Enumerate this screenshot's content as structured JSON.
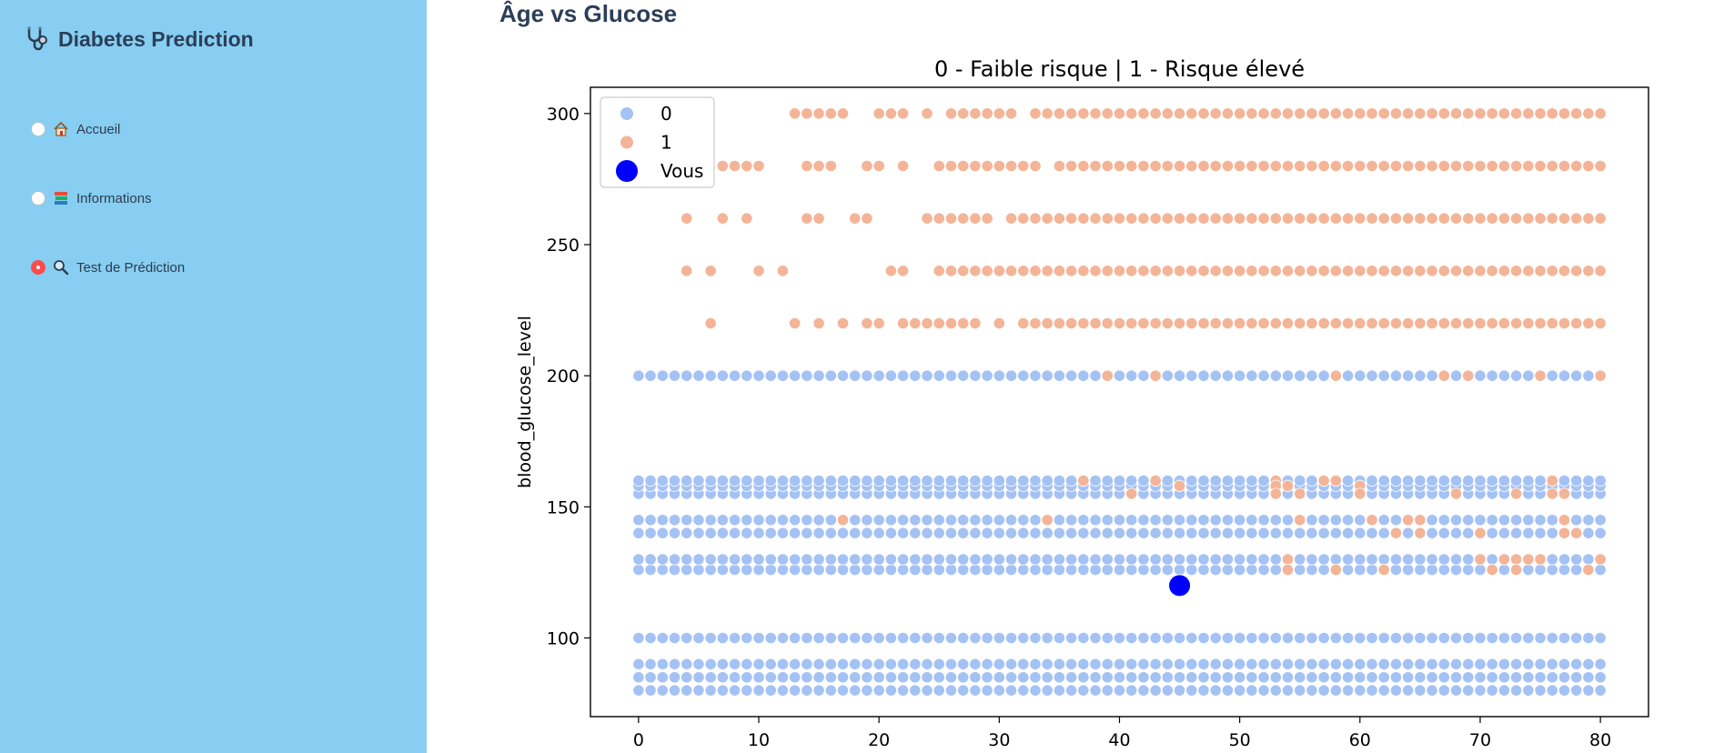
{
  "sidebar": {
    "title": "Diabetes Prediction",
    "logo_icon": "stethoscope-icon",
    "accent_color": "#87cef2",
    "items": [
      {
        "label": "Accueil",
        "icon": "house-icon",
        "selected": false
      },
      {
        "label": "Informations",
        "icon": "books-icon",
        "selected": false
      },
      {
        "label": "Test de Prédiction",
        "icon": "magnifier-icon",
        "selected": true
      }
    ]
  },
  "main": {
    "section_title": "Âge vs Glucose"
  },
  "chart_data": {
    "type": "scatter",
    "title": "0 - Faible risque | 1 - Risque élevé",
    "xlabel": "",
    "ylabel": "blood_glucose_level",
    "xlim": [
      -4,
      84
    ],
    "ylim": [
      70,
      310
    ],
    "xticks": [
      0,
      10,
      20,
      30,
      40,
      50,
      60,
      70,
      80
    ],
    "yticks": [
      100,
      150,
      200,
      250,
      300
    ],
    "legend_position": "top-left",
    "grid": false,
    "colors": {
      "0": "#a5c2f4",
      "1": "#f4b497",
      "Vous": "#0000ff"
    },
    "legend": [
      {
        "label": "0",
        "color": "#a5c2f4"
      },
      {
        "label": "1",
        "color": "#f4b497"
      },
      {
        "label": "Vous",
        "color": "#0000ff"
      }
    ],
    "series": [
      {
        "name": "0",
        "color": "#a5c2f4",
        "rows": [
          {
            "y": 80,
            "x_from": 0,
            "x_to": 80
          },
          {
            "y": 85,
            "x_from": 0,
            "x_to": 80
          },
          {
            "y": 90,
            "x_from": 0,
            "x_to": 80
          },
          {
            "y": 100,
            "x_from": 0,
            "x_to": 80
          },
          {
            "y": 126,
            "x_from": 0,
            "x_to": 80
          },
          {
            "y": 130,
            "x_from": 0,
            "x_to": 80
          },
          {
            "y": 140,
            "x_from": 0,
            "x_to": 80
          },
          {
            "y": 145,
            "x_from": 0,
            "x_to": 80
          },
          {
            "y": 155,
            "x_from": 0,
            "x_to": 80
          },
          {
            "y": 158,
            "x_from": 0,
            "x_to": 80
          },
          {
            "y": 160,
            "x_from": 0,
            "x_to": 80
          },
          {
            "y": 200,
            "x_from": 0,
            "x_to": 80
          }
        ]
      },
      {
        "name": "1",
        "color": "#f4b497",
        "rows": [
          {
            "y": 300,
            "x": [
              13,
              14,
              15,
              16,
              17,
              20,
              21,
              22,
              24,
              26,
              27,
              28,
              29,
              30,
              31,
              33,
              34,
              35,
              36,
              37,
              38,
              39,
              40,
              41,
              42,
              43,
              44,
              45,
              46,
              47,
              48,
              49,
              50,
              51,
              52,
              53,
              54,
              55,
              56,
              57,
              58,
              59,
              60,
              61,
              62,
              63,
              64,
              65,
              66,
              67,
              68,
              69,
              70,
              71,
              72,
              73,
              74,
              75,
              76,
              77,
              78,
              79,
              80
            ]
          },
          {
            "y": 280,
            "x": [
              7,
              8,
              9,
              10,
              14,
              15,
              16,
              19,
              20,
              22,
              25,
              26,
              27,
              28,
              29,
              30,
              31,
              32,
              33,
              35,
              36,
              37,
              38,
              39,
              40,
              41,
              42,
              43,
              44,
              45,
              46,
              47,
              48,
              49,
              50,
              51,
              52,
              53,
              54,
              55,
              56,
              57,
              58,
              59,
              60,
              61,
              62,
              63,
              64,
              65,
              66,
              67,
              68,
              69,
              70,
              71,
              72,
              73,
              74,
              75,
              76,
              77,
              78,
              79,
              80
            ]
          },
          {
            "y": 260,
            "x": [
              4,
              7,
              9,
              14,
              15,
              18,
              19,
              24,
              25,
              26,
              27,
              28,
              29,
              31,
              32,
              33,
              34,
              35,
              36,
              37,
              38,
              39,
              40,
              41,
              42,
              43,
              44,
              45,
              46,
              47,
              48,
              49,
              50,
              51,
              52,
              53,
              54,
              55,
              56,
              57,
              58,
              59,
              60,
              61,
              62,
              63,
              64,
              65,
              66,
              67,
              68,
              69,
              70,
              71,
              72,
              73,
              74,
              75,
              76,
              77,
              78,
              79,
              80
            ]
          },
          {
            "y": 240,
            "x": [
              4,
              6,
              10,
              12,
              21,
              22,
              25,
              26,
              27,
              28,
              29,
              30,
              31,
              32,
              33,
              34,
              35,
              36,
              37,
              38,
              39,
              40,
              41,
              42,
              43,
              44,
              45,
              46,
              47,
              48,
              49,
              50,
              51,
              52,
              53,
              54,
              55,
              56,
              57,
              58,
              59,
              60,
              61,
              62,
              63,
              64,
              65,
              66,
              67,
              68,
              69,
              70,
              71,
              72,
              73,
              74,
              75,
              76,
              77,
              78,
              79,
              80
            ]
          },
          {
            "y": 220,
            "x": [
              6,
              13,
              15,
              17,
              19,
              20,
              22,
              23,
              24,
              25,
              26,
              27,
              28,
              30,
              32,
              33,
              34,
              35,
              36,
              37,
              38,
              39,
              40,
              41,
              42,
              43,
              44,
              45,
              46,
              47,
              48,
              49,
              50,
              51,
              52,
              53,
              54,
              55,
              56,
              57,
              58,
              59,
              60,
              61,
              62,
              63,
              64,
              65,
              66,
              67,
              68,
              69,
              70,
              71,
              72,
              73,
              74,
              75,
              76,
              77,
              78,
              79,
              80
            ]
          },
          {
            "y": 200,
            "x": [
              39,
              43,
              58,
              67,
              69,
              75,
              80
            ]
          },
          {
            "y": 160,
            "x": [
              37,
              43,
              53,
              57,
              58,
              76
            ]
          },
          {
            "y": 158,
            "x": [
              45,
              53,
              54,
              60
            ]
          },
          {
            "y": 155,
            "x": [
              41,
              53,
              55,
              60,
              68,
              73,
              76,
              77
            ]
          },
          {
            "y": 145,
            "x": [
              17,
              34,
              55,
              61,
              64,
              65,
              77
            ]
          },
          {
            "y": 140,
            "x": [
              63,
              65,
              70,
              77,
              78
            ]
          },
          {
            "y": 130,
            "x": [
              54,
              70,
              72,
              73,
              74,
              75,
              80
            ]
          },
          {
            "y": 126,
            "x": [
              54,
              58,
              62,
              71,
              73,
              79
            ]
          }
        ]
      },
      {
        "name": "Vous",
        "color": "#0000ff",
        "points": [
          {
            "x": 45,
            "y": 120
          }
        ]
      }
    ]
  }
}
